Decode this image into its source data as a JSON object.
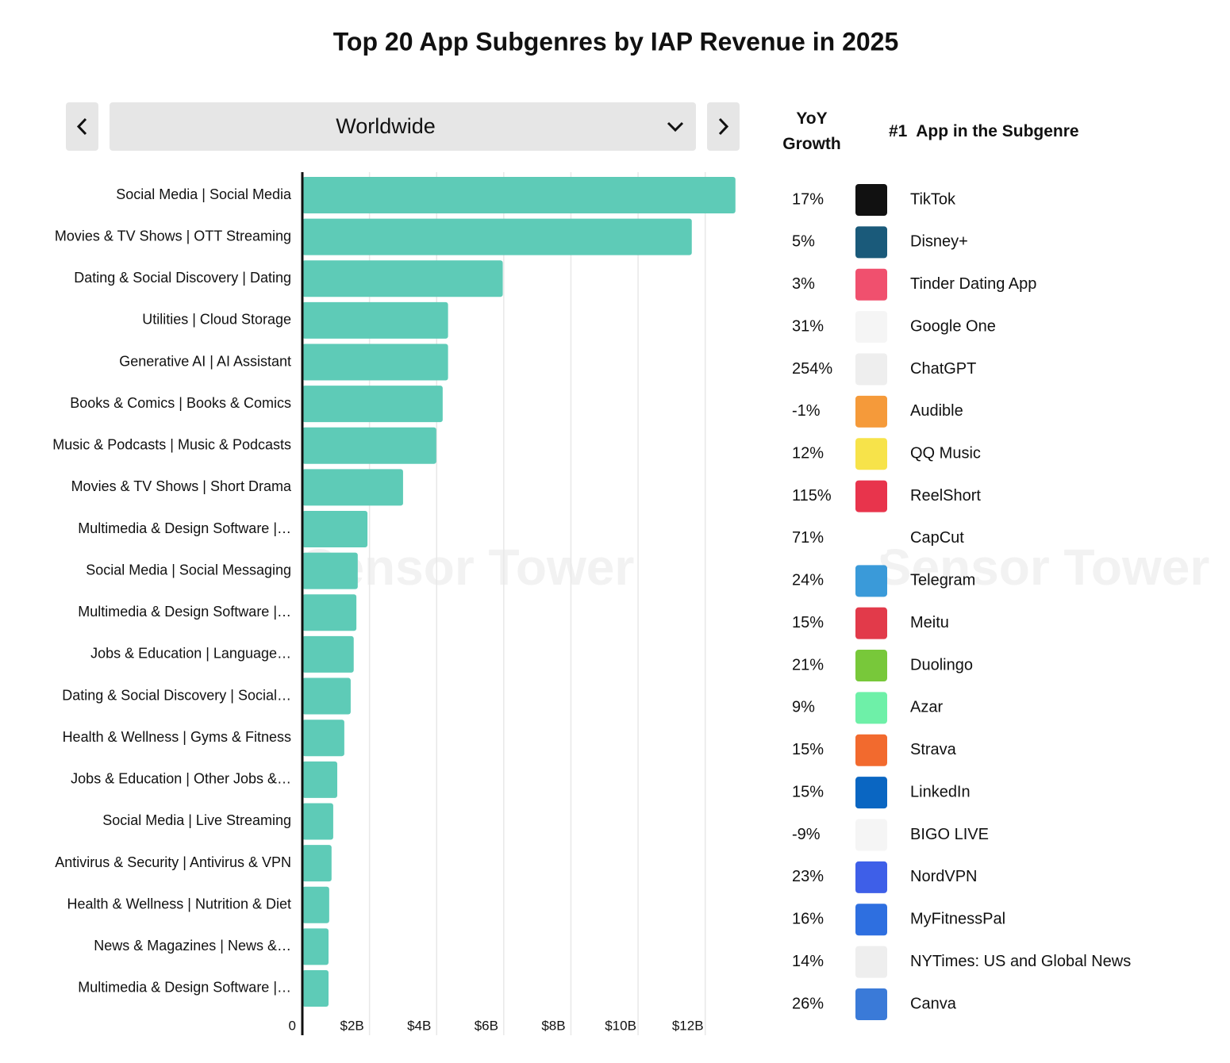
{
  "chart_data": {
    "type": "bar",
    "horizontal": true,
    "title": "Top 20 App Subgenres by IAP Revenue in 2025",
    "region": "Worldwide",
    "watermark": "Sensor Tower",
    "color": "#5ecbb7",
    "categories": [
      "Social Media | Social Media",
      "Movies & TV Shows | OTT Streaming",
      "Dating & Social Discovery | Dating",
      "Utilities | Cloud Storage",
      "Generative AI | AI Assistant",
      "Books & Comics | Books & Comics",
      "Music & Podcasts | Music & Podcasts",
      "Movies & TV Shows | Short Drama",
      "Multimedia & Design Software |…",
      "Social Media | Social Messaging",
      "Multimedia & Design Software |…",
      "Jobs & Education | Language…",
      "Dating & Social Discovery | Social…",
      "Health & Wellness | Gyms & Fitness",
      "Jobs & Education | Other Jobs &…",
      "Social Media | Live Streaming",
      "Antivirus & Security | Antivirus & VPN",
      "Health & Wellness | Nutrition & Diet",
      "News & Magazines | News &…",
      "Multimedia & Design Software |…"
    ],
    "values": [
      12900000000,
      11600000000,
      5970000000,
      4340000000,
      4340000000,
      4180000000,
      3990000000,
      3000000000,
      1940000000,
      1650000000,
      1610000000,
      1530000000,
      1440000000,
      1250000000,
      1040000000,
      920000000,
      870000000,
      800000000,
      780000000,
      780000000
    ],
    "xlim": [
      0,
      13000000000
    ],
    "xticks": [
      0,
      {
        "value": 2000000000,
        "label": "$2B"
      },
      {
        "value": 4000000000,
        "label": "$4B"
      },
      {
        "value": 6000000000,
        "label": "$6B"
      },
      {
        "value": 8000000000,
        "label": "$8B"
      },
      {
        "value": 10000000000,
        "label": "$10B"
      },
      {
        "value": 12000000000,
        "label": "$12B"
      }
    ],
    "grid": true,
    "table": {
      "growth_header": "YoY Growth",
      "app_header": "#1  App in the Subgenre",
      "rows": [
        {
          "growth": "17%",
          "app": "TikTok",
          "icon_color": "#111111"
        },
        {
          "growth": "5%",
          "app": "Disney+",
          "icon_color": "#1a5a7a"
        },
        {
          "growth": "3%",
          "app": "Tinder Dating App",
          "icon_color": "#f0506e"
        },
        {
          "growth": "31%",
          "app": "Google One",
          "icon_color": "#f5f5f5"
        },
        {
          "growth": "254%",
          "app": "ChatGPT",
          "icon_color": "#eeeeee"
        },
        {
          "growth": "-1%",
          "app": "Audible",
          "icon_color": "#f59a3a"
        },
        {
          "growth": "12%",
          "app": "QQ Music",
          "icon_color": "#f7e34a"
        },
        {
          "growth": "115%",
          "app": "ReelShort",
          "icon_color": "#e8344c"
        },
        {
          "growth": "71%",
          "app": "CapCut",
          "icon_color": "#ffffff"
        },
        {
          "growth": "24%",
          "app": "Telegram",
          "icon_color": "#3a9ad9"
        },
        {
          "growth": "15%",
          "app": "Meitu",
          "icon_color": "#e23a4a"
        },
        {
          "growth": "21%",
          "app": "Duolingo",
          "icon_color": "#78c83a"
        },
        {
          "growth": "9%",
          "app": "Azar",
          "icon_color": "#6ef0a8"
        },
        {
          "growth": "15%",
          "app": "Strava",
          "icon_color": "#f26a2e"
        },
        {
          "growth": "15%",
          "app": "LinkedIn",
          "icon_color": "#0a66c2"
        },
        {
          "growth": "-9%",
          "app": "BIGO LIVE",
          "icon_color": "#f5f5f5"
        },
        {
          "growth": "23%",
          "app": "NordVPN",
          "icon_color": "#3e5fe8"
        },
        {
          "growth": "16%",
          "app": "MyFitnessPal",
          "icon_color": "#2e6fe0"
        },
        {
          "growth": "14%",
          "app": "NYTimes: US and Global News",
          "icon_color": "#eeeeee"
        },
        {
          "growth": "26%",
          "app": "Canva",
          "icon_color": "#3a7ad8"
        }
      ]
    }
  }
}
